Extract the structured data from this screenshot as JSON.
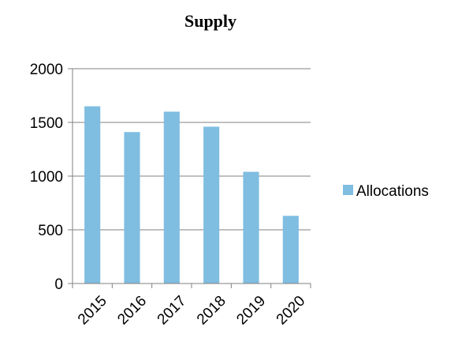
{
  "chart_data": {
    "type": "bar",
    "title": "Supply",
    "xlabel": "",
    "ylabel": "",
    "categories": [
      "2015",
      "2016",
      "2017",
      "2018",
      "2019",
      "2020"
    ],
    "series": [
      {
        "name": "Allocations",
        "values": [
          1650,
          1410,
          1600,
          1460,
          1040,
          630
        ],
        "color": "#7FBDE1"
      }
    ],
    "ylim": [
      0,
      2000
    ],
    "yticks": [
      0,
      500,
      1000,
      1500,
      2000
    ],
    "grid": true,
    "legend": "right"
  }
}
